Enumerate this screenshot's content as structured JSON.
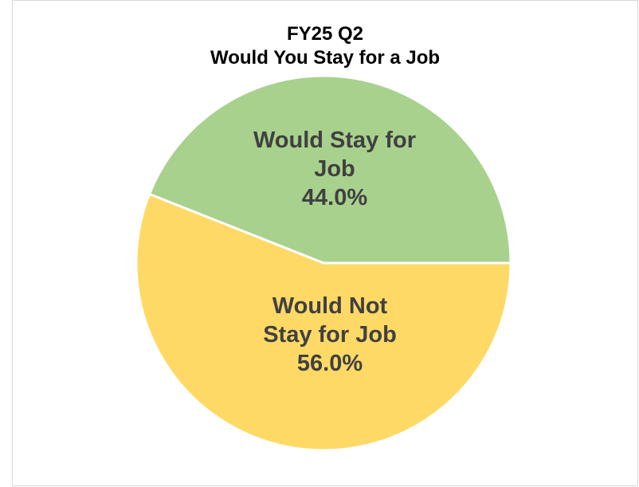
{
  "chart_data": {
    "type": "pie",
    "title": "FY25 Q2",
    "subtitle": "Would You Stay for a Job",
    "slices": [
      {
        "name": "Would Stay for Job",
        "value": 44.0,
        "percent_label": "44.0%",
        "label_lines": [
          "Would Stay for",
          "Job",
          "44.0%"
        ],
        "color": "#a9d18e"
      },
      {
        "name": "Would Not Stay for Job",
        "value": 56.0,
        "percent_label": "56.0%",
        "label_lines": [
          "Would Not",
          "Stay for Job",
          "56.0%"
        ],
        "color": "#ffd966"
      }
    ],
    "legend": "none",
    "data_labels": "inside"
  }
}
